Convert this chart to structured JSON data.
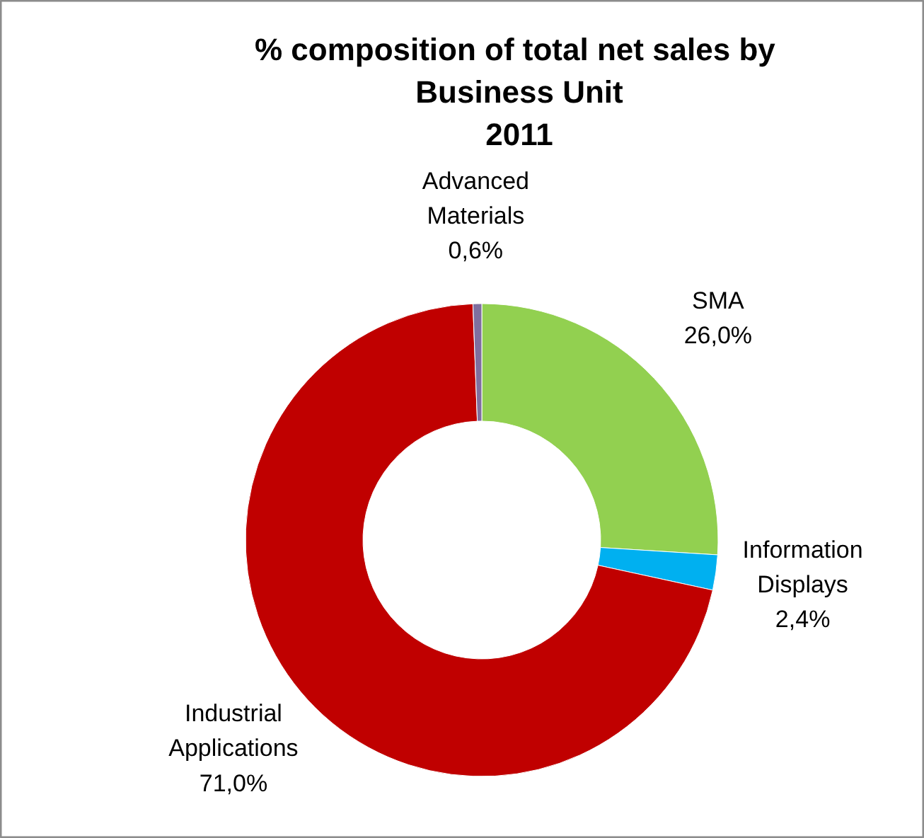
{
  "chart_data": {
    "type": "donut",
    "title": "% composition of  total net sales by\nBusiness Unit\n2011",
    "categories": [
      "SMA",
      "Information Displays",
      "Industrial Applications",
      "Advanced Materials"
    ],
    "values": [
      26.0,
      2.4,
      71.0,
      0.6
    ],
    "colors": [
      "#92d050",
      "#00b0f0",
      "#c00000",
      "#7f6f9f"
    ],
    "value_labels": [
      "26,0%",
      "2,4%",
      "71,0%",
      "0,6%"
    ],
    "legend": false
  }
}
